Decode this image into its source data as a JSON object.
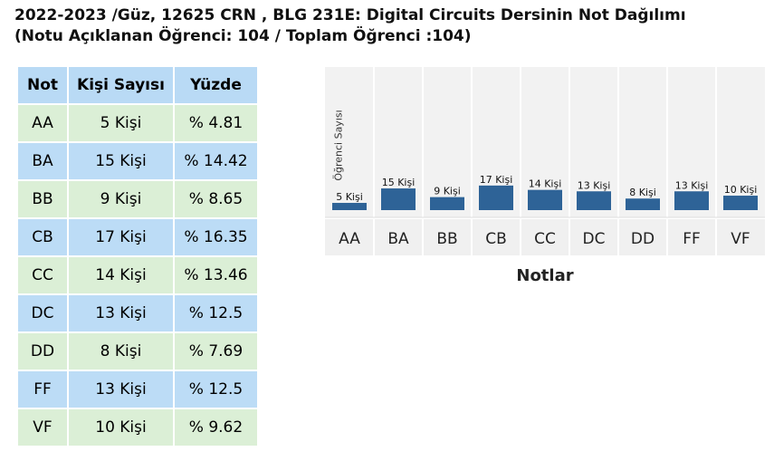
{
  "title": {
    "line1": "2022-2023 /Güz, 12625 CRN , BLG 231E: Digital Circuits Dersinin Not Dağılımı",
    "line2": "(Notu Açıklanan Öğrenci: 104 / Toplam Öğrenci :104)"
  },
  "table": {
    "headers": [
      "Not",
      "Kişi Sayısı",
      "Yüzde"
    ],
    "rows": [
      {
        "grade": "AA",
        "count": "5 Kişi",
        "percent": "% 4.81"
      },
      {
        "grade": "BA",
        "count": "15 Kişi",
        "percent": "% 14.42"
      },
      {
        "grade": "BB",
        "count": "9 Kişi",
        "percent": "% 8.65"
      },
      {
        "grade": "CB",
        "count": "17 Kişi",
        "percent": "% 16.35"
      },
      {
        "grade": "CC",
        "count": "14 Kişi",
        "percent": "% 13.46"
      },
      {
        "grade": "DC",
        "count": "13 Kişi",
        "percent": "% 12.5"
      },
      {
        "grade": "DD",
        "count": "8 Kişi",
        "percent": "% 7.69"
      },
      {
        "grade": "FF",
        "count": "13 Kişi",
        "percent": "% 12.5"
      },
      {
        "grade": "VF",
        "count": "10 Kişi",
        "percent": "% 9.62"
      }
    ]
  },
  "chart_data": {
    "type": "bar",
    "title": "",
    "xlabel": "Notlar",
    "ylabel": "Öğrenci Sayısı",
    "categories": [
      "AA",
      "BA",
      "BB",
      "CB",
      "CC",
      "DC",
      "DD",
      "FF",
      "VF"
    ],
    "values": [
      5,
      15,
      9,
      17,
      14,
      13,
      8,
      13,
      10
    ],
    "data_labels": [
      "5 Kişi",
      "15 Kişi",
      "9 Kişi",
      "17 Kişi",
      "14 Kişi",
      "13 Kişi",
      "8 Kişi",
      "13 Kişi",
      "10 Kişi"
    ],
    "bar_color": "#2e6397",
    "grid": true,
    "ylim": [
      0,
      104
    ]
  },
  "colors": {
    "header_bg": "#b9daf5",
    "row_green": "#dbefd6",
    "row_blue": "#bcdcf6",
    "bar": "#2e6397"
  }
}
